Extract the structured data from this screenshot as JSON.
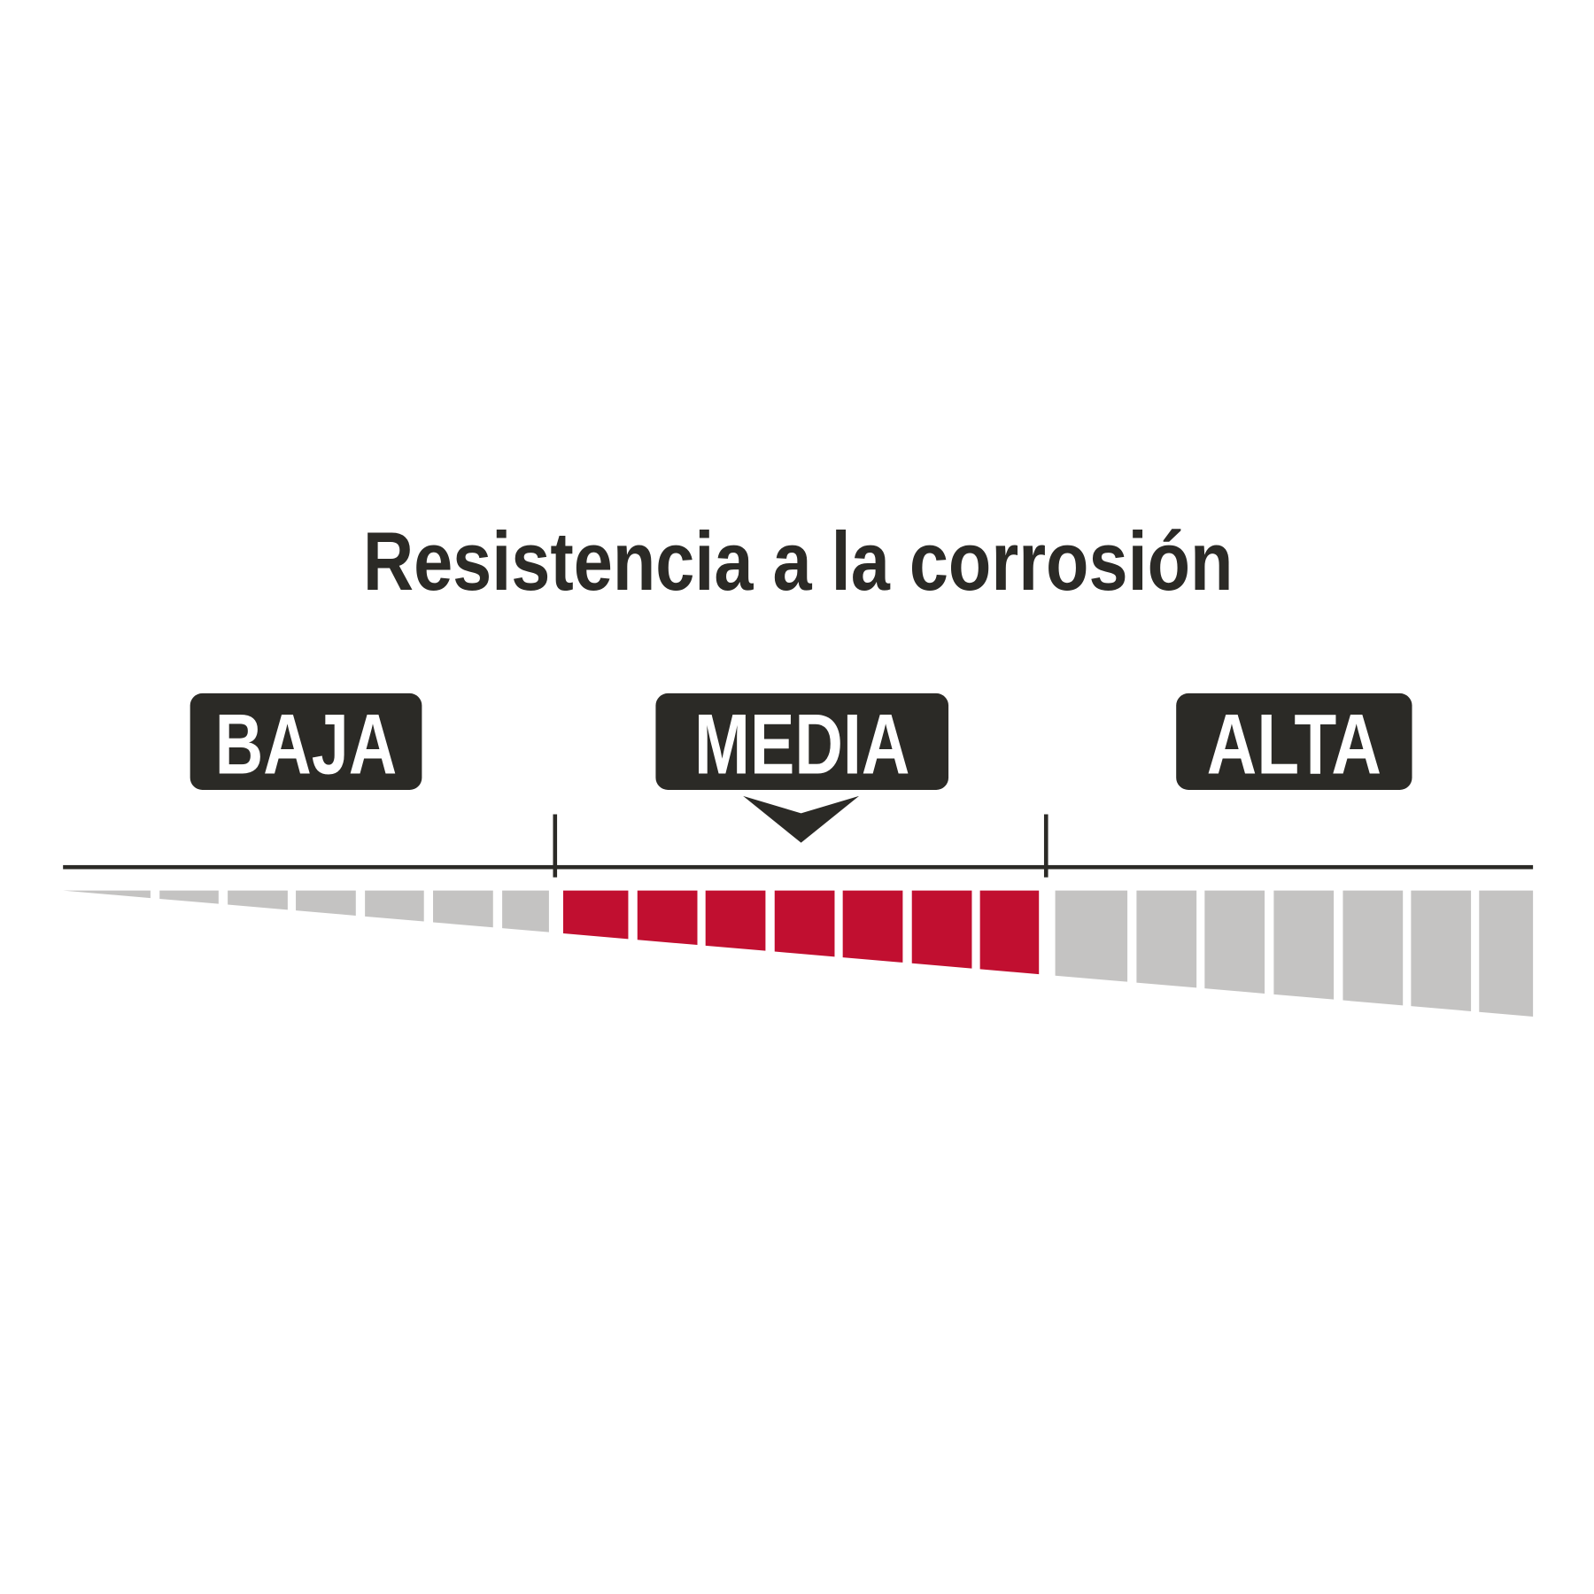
{
  "title": "Resistencia a la corrosión",
  "levels": [
    {
      "label": "BAJA"
    },
    {
      "label": "MEDIA"
    },
    {
      "label": "ALTA"
    }
  ],
  "selected_level": "MEDIA",
  "segments_per_level": 7,
  "colors": {
    "text": "#2b2a26",
    "label_bg": "#2b2a26",
    "label_text": "#ffffff",
    "inactive": "#c4c3c2",
    "active": "#c10f30",
    "axis": "#2b2a26"
  }
}
